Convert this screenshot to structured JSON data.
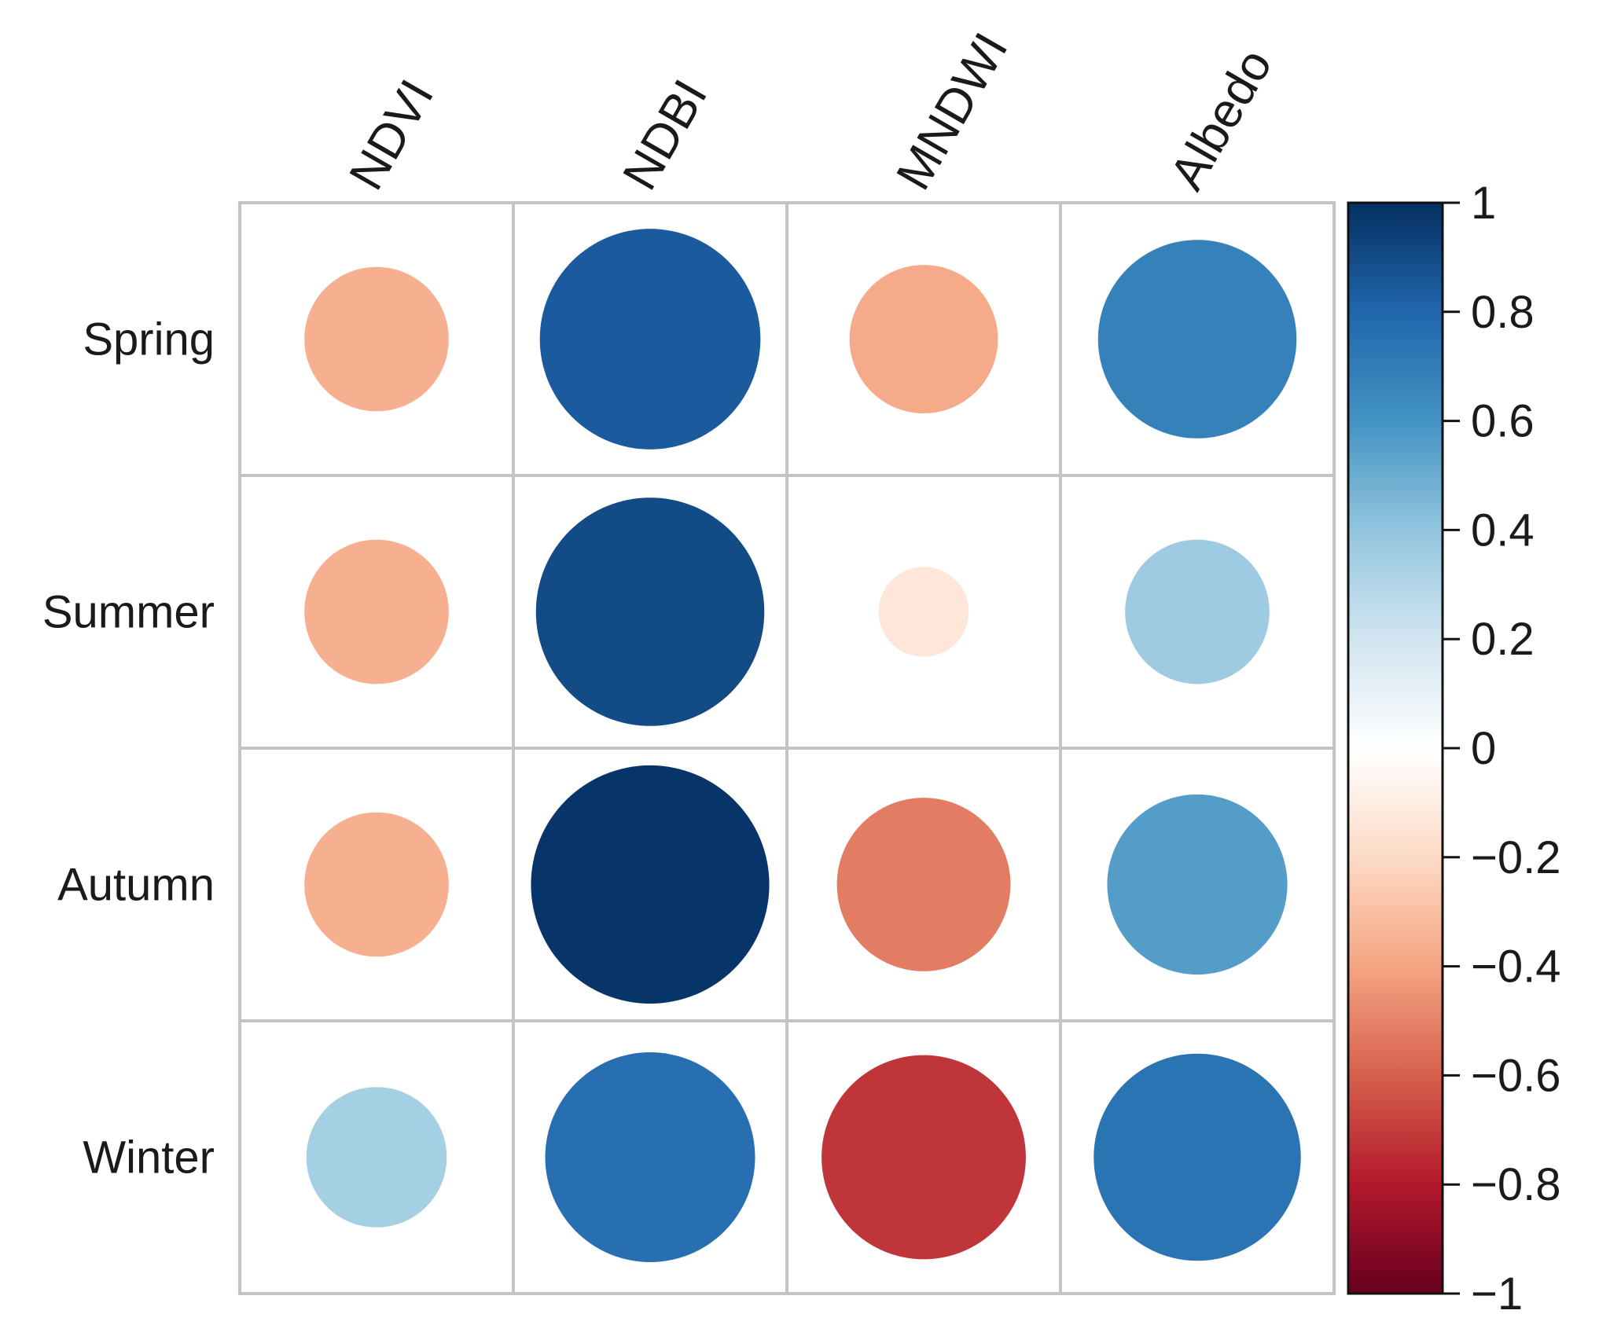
{
  "chart_data": {
    "type": "heatmap",
    "subtype": "correlation-circles",
    "title": "",
    "columns": [
      "NDVI",
      "NDBI",
      "MNDWI",
      "Albedo"
    ],
    "rows": [
      "Spring",
      "Summer",
      "Autumn",
      "Winter"
    ],
    "values": [
      [
        -0.36,
        0.84,
        -0.38,
        0.68
      ],
      [
        -0.36,
        0.9,
        -0.14,
        0.36
      ],
      [
        -0.36,
        0.98,
        -0.52,
        0.56
      ],
      [
        0.34,
        0.76,
        -0.72,
        0.74
      ]
    ],
    "colorbar": {
      "range": [
        -1,
        1
      ],
      "tick_labels": [
        "1",
        "0.8",
        "0.6",
        "0.4",
        "0.2",
        "0",
        "−0.2",
        "−0.4",
        "−0.6",
        "−0.8",
        "−1"
      ],
      "tick_values": [
        1,
        0.8,
        0.6,
        0.4,
        0.2,
        0,
        -0.2,
        -0.4,
        -0.6,
        -0.8,
        -1
      ],
      "stops": [
        {
          "value": -1.0,
          "color": "#67001F"
        },
        {
          "value": -0.8,
          "color": "#B2182B"
        },
        {
          "value": -0.6,
          "color": "#D6604D"
        },
        {
          "value": -0.4,
          "color": "#F4A582"
        },
        {
          "value": -0.2,
          "color": "#FDDBC7"
        },
        {
          "value": 0.0,
          "color": "#FFFFFF"
        },
        {
          "value": 0.2,
          "color": "#D1E5F0"
        },
        {
          "value": 0.4,
          "color": "#92C5DE"
        },
        {
          "value": 0.6,
          "color": "#4393C3"
        },
        {
          "value": 0.8,
          "color": "#2166AC"
        },
        {
          "value": 1.0,
          "color": "#053061"
        }
      ]
    },
    "grid": true,
    "legend": "right"
  }
}
